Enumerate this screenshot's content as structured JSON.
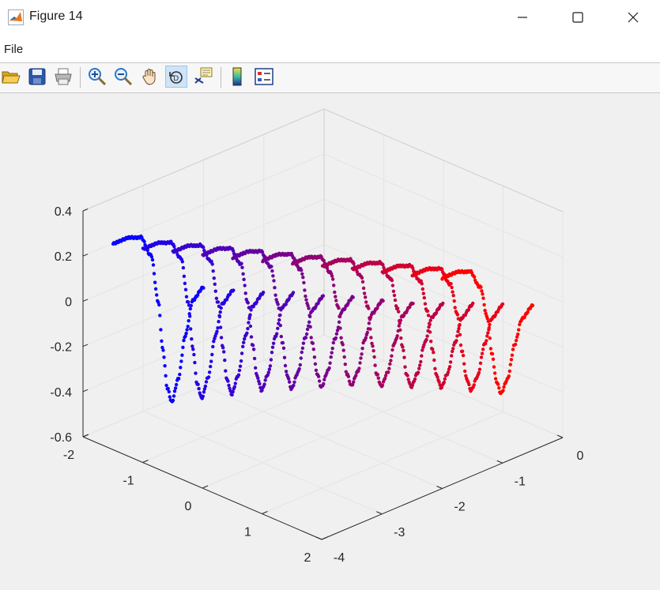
{
  "window": {
    "title": "Figure 14",
    "controls": [
      "minimize",
      "maximize",
      "close"
    ]
  },
  "menu": {
    "file_label": "File"
  },
  "toolbar": {
    "buttons": [
      {
        "name": "open-file",
        "icon": "folder-open-icon"
      },
      {
        "name": "save",
        "icon": "save-icon"
      },
      {
        "name": "print",
        "icon": "printer-icon"
      },
      {
        "name": "zoom-in",
        "icon": "zoom-in-icon"
      },
      {
        "name": "zoom-out",
        "icon": "zoom-out-icon"
      },
      {
        "name": "pan",
        "icon": "hand-icon"
      },
      {
        "name": "rotate-3d",
        "icon": "rotate-3d-icon",
        "active": true
      },
      {
        "name": "data-cursor",
        "icon": "data-tip-icon"
      },
      {
        "name": "insert-colorbar",
        "icon": "colorbar-icon"
      },
      {
        "name": "insert-legend",
        "icon": "legend-icon"
      }
    ]
  },
  "colors": {
    "series_start": "#0a00ff",
    "series_end": "#ff0000",
    "axis": "#262626",
    "grid": "#e4e4e4"
  },
  "chart_data": {
    "type": "scatter",
    "dimensions": 3,
    "title": "",
    "xlabel": "",
    "ylabel": "",
    "zlabel": "",
    "xlim": [
      -4,
      0
    ],
    "ylim": [
      -2,
      2
    ],
    "zlim": [
      -0.6,
      0.4
    ],
    "x_ticks": [
      "-4",
      "-3",
      "-2",
      "-1",
      "0"
    ],
    "y_ticks": [
      "-2",
      "-1",
      "0",
      "1",
      "2"
    ],
    "z_ticks": [
      "-0.6",
      "-0.4",
      "-0.2",
      "0",
      "0.2",
      "0.4"
    ],
    "grid": true,
    "box": "back-planes",
    "color_gradient": "blue to red across curves",
    "series": [
      {
        "y": -1.9,
        "x_start": -3.6,
        "x_end": -2.1,
        "points": [
          [
            0,
            0.22
          ],
          [
            0.15,
            0.22
          ],
          [
            0.3,
            0.2
          ],
          [
            0.42,
            0.1
          ],
          [
            0.5,
            -0.12
          ],
          [
            0.55,
            -0.34
          ],
          [
            0.6,
            -0.52
          ],
          [
            0.65,
            -0.59
          ],
          [
            0.72,
            -0.5
          ],
          [
            0.8,
            -0.32
          ],
          [
            0.88,
            -0.18
          ],
          [
            1,
            -0.14
          ]
        ]
      },
      {
        "y": -1.55,
        "x_start": -3.45,
        "x_end": -1.95,
        "points": [
          [
            0,
            0.22
          ],
          [
            0.15,
            0.22
          ],
          [
            0.3,
            0.2
          ],
          [
            0.42,
            0.11
          ],
          [
            0.5,
            -0.1
          ],
          [
            0.55,
            -0.31
          ],
          [
            0.6,
            -0.48
          ],
          [
            0.65,
            -0.55
          ],
          [
            0.72,
            -0.47
          ],
          [
            0.8,
            -0.3
          ],
          [
            0.88,
            -0.17
          ],
          [
            1,
            -0.13
          ]
        ]
      },
      {
        "y": -1.2,
        "x_start": -3.3,
        "x_end": -1.8,
        "points": [
          [
            0,
            0.23
          ],
          [
            0.15,
            0.23
          ],
          [
            0.3,
            0.21
          ],
          [
            0.42,
            0.12
          ],
          [
            0.5,
            -0.08
          ],
          [
            0.55,
            -0.28
          ],
          [
            0.6,
            -0.44
          ],
          [
            0.65,
            -0.51
          ],
          [
            0.72,
            -0.44
          ],
          [
            0.8,
            -0.28
          ],
          [
            0.88,
            -0.16
          ],
          [
            1,
            -0.12
          ]
        ]
      },
      {
        "y": -0.85,
        "x_start": -3.15,
        "x_end": -1.65,
        "points": [
          [
            0,
            0.24
          ],
          [
            0.15,
            0.24
          ],
          [
            0.3,
            0.22
          ],
          [
            0.42,
            0.13
          ],
          [
            0.5,
            -0.06
          ],
          [
            0.55,
            -0.25
          ],
          [
            0.6,
            -0.4
          ],
          [
            0.65,
            -0.47
          ],
          [
            0.72,
            -0.41
          ],
          [
            0.8,
            -0.26
          ],
          [
            0.88,
            -0.14
          ],
          [
            1,
            -0.1
          ]
        ]
      },
      {
        "y": -0.5,
        "x_start": -3.0,
        "x_end": -1.5,
        "points": [
          [
            0,
            0.25
          ],
          [
            0.15,
            0.25
          ],
          [
            0.3,
            0.23
          ],
          [
            0.42,
            0.14
          ],
          [
            0.5,
            -0.04
          ],
          [
            0.55,
            -0.22
          ],
          [
            0.6,
            -0.37
          ],
          [
            0.65,
            -0.44
          ],
          [
            0.72,
            -0.38
          ],
          [
            0.8,
            -0.24
          ],
          [
            0.88,
            -0.13
          ],
          [
            1,
            -0.09
          ]
        ]
      },
      {
        "y": -0.15,
        "x_start": -2.85,
        "x_end": -1.35,
        "points": [
          [
            0,
            0.26
          ],
          [
            0.15,
            0.26
          ],
          [
            0.3,
            0.24
          ],
          [
            0.42,
            0.15
          ],
          [
            0.5,
            -0.02
          ],
          [
            0.55,
            -0.2
          ],
          [
            0.6,
            -0.34
          ],
          [
            0.65,
            -0.41
          ],
          [
            0.72,
            -0.35
          ],
          [
            0.8,
            -0.22
          ],
          [
            0.88,
            -0.11
          ],
          [
            1,
            -0.07
          ]
        ]
      },
      {
        "y": 0.2,
        "x_start": -2.7,
        "x_end": -1.2,
        "points": [
          [
            0,
            0.27
          ],
          [
            0.15,
            0.27
          ],
          [
            0.3,
            0.25
          ],
          [
            0.42,
            0.16
          ],
          [
            0.5,
            0.0
          ],
          [
            0.55,
            -0.18
          ],
          [
            0.6,
            -0.32
          ],
          [
            0.65,
            -0.38
          ],
          [
            0.72,
            -0.33
          ],
          [
            0.8,
            -0.2
          ],
          [
            0.88,
            -0.1
          ],
          [
            1,
            -0.06
          ]
        ]
      },
      {
        "y": 0.55,
        "x_start": -2.55,
        "x_end": -1.05,
        "points": [
          [
            0,
            0.28
          ],
          [
            0.15,
            0.28
          ],
          [
            0.3,
            0.26
          ],
          [
            0.42,
            0.17
          ],
          [
            0.5,
            0.02
          ],
          [
            0.55,
            -0.16
          ],
          [
            0.6,
            -0.3
          ],
          [
            0.65,
            -0.36
          ],
          [
            0.72,
            -0.31
          ],
          [
            0.8,
            -0.19
          ],
          [
            0.88,
            -0.09
          ],
          [
            1,
            -0.05
          ]
        ]
      },
      {
        "y": 0.9,
        "x_start": -2.4,
        "x_end": -0.9,
        "points": [
          [
            0,
            0.29
          ],
          [
            0.15,
            0.29
          ],
          [
            0.3,
            0.27
          ],
          [
            0.42,
            0.18
          ],
          [
            0.5,
            0.03
          ],
          [
            0.55,
            -0.14
          ],
          [
            0.6,
            -0.28
          ],
          [
            0.65,
            -0.34
          ],
          [
            0.72,
            -0.29
          ],
          [
            0.8,
            -0.17
          ],
          [
            0.88,
            -0.07
          ],
          [
            1,
            -0.03
          ]
        ]
      },
      {
        "y": 1.25,
        "x_start": -2.25,
        "x_end": -0.75,
        "points": [
          [
            0,
            0.3
          ],
          [
            0.15,
            0.3
          ],
          [
            0.3,
            0.28
          ],
          [
            0.42,
            0.19
          ],
          [
            0.5,
            0.04
          ],
          [
            0.55,
            -0.13
          ],
          [
            0.6,
            -0.26
          ],
          [
            0.65,
            -0.32
          ],
          [
            0.72,
            -0.27
          ],
          [
            0.8,
            -0.15
          ],
          [
            0.88,
            -0.05
          ],
          [
            1,
            -0.01
          ]
        ]
      },
      {
        "y": 1.6,
        "x_start": -2.1,
        "x_end": -0.6,
        "points": [
          [
            0,
            0.31
          ],
          [
            0.15,
            0.31
          ],
          [
            0.3,
            0.29
          ],
          [
            0.42,
            0.2
          ],
          [
            0.5,
            0.05
          ],
          [
            0.55,
            -0.12
          ],
          [
            0.6,
            -0.25
          ],
          [
            0.65,
            -0.31
          ],
          [
            0.72,
            -0.26
          ],
          [
            0.8,
            -0.13
          ],
          [
            0.88,
            -0.03
          ],
          [
            1,
            0.01
          ]
        ]
      },
      {
        "y": 1.95,
        "x_start": -1.95,
        "x_end": -0.45,
        "points": [
          [
            0,
            0.32
          ],
          [
            0.15,
            0.32
          ],
          [
            0.3,
            0.3
          ],
          [
            0.42,
            0.21
          ],
          [
            0.5,
            0.06
          ],
          [
            0.55,
            -0.11
          ],
          [
            0.6,
            -0.24
          ],
          [
            0.65,
            -0.3
          ],
          [
            0.72,
            -0.25
          ],
          [
            0.8,
            -0.11
          ],
          [
            0.88,
            -0.01
          ],
          [
            1,
            0.03
          ]
        ]
      }
    ]
  }
}
